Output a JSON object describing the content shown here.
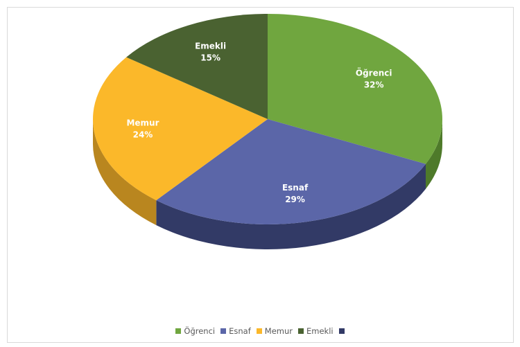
{
  "chart_data": {
    "type": "pie",
    "categories": [
      "Öğrenci",
      "Esnaf",
      "Memur",
      "Emekli"
    ],
    "values": [
      32,
      29,
      24,
      15
    ],
    "value_labels": [
      "32%",
      "29%",
      "24%",
      "15%"
    ],
    "colors": [
      "#70a63f",
      "#5b66a8",
      "#fbb82a",
      "#4a6231"
    ],
    "side_colors": [
      "#4e7a2a",
      "#323a66",
      "#b9861f",
      "#334620"
    ],
    "legend": {
      "position": "bottom",
      "entries": [
        {
          "label": "Öğrenci",
          "color": "#70a63f"
        },
        {
          "label": "Esnaf",
          "color": "#5b66a8"
        },
        {
          "label": "Memur",
          "color": "#fbb82a"
        },
        {
          "label": "Emekli",
          "color": "#4a6231"
        },
        {
          "label": "",
          "color": "#323a66"
        }
      ]
    }
  }
}
